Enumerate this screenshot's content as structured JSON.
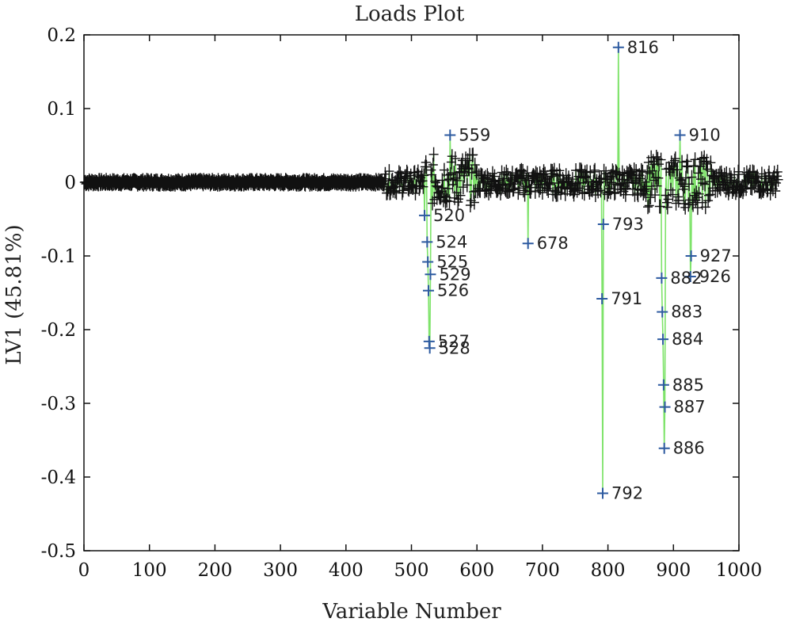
{
  "chart_data": {
    "type": "line",
    "title": "Loads Plot",
    "xlabel": "Variable Number",
    "ylabel": "LV1 (45.81%)",
    "xlim": [
      0,
      1000
    ],
    "ylim": [
      -0.5,
      0.2
    ],
    "xticks": [
      0,
      100,
      200,
      300,
      400,
      500,
      600,
      700,
      800,
      900,
      1000
    ],
    "yticks": [
      0.2,
      0.1,
      0,
      -0.1,
      -0.2,
      -0.3,
      -0.4,
      -0.5
    ],
    "ytick_labels": [
      "0.2",
      "0.1",
      "0",
      "-0.1",
      "-0.2",
      "-0.3",
      "-0.4",
      "-0.5"
    ],
    "grid": false,
    "colors": {
      "line": "#7ee36a",
      "marker": "#2d5aa0",
      "baseline": "#3f6fe0",
      "band": "#111111"
    },
    "labeled_points": [
      {
        "label": "816",
        "x": 816,
        "y": 0.183
      },
      {
        "label": "559",
        "x": 559,
        "y": 0.064
      },
      {
        "label": "678",
        "x": 678,
        "y": -0.083
      },
      {
        "label": "524",
        "x": 524,
        "y": -0.081
      },
      {
        "label": "525",
        "x": 525,
        "y": -0.108
      },
      {
        "label": "529",
        "x": 529,
        "y": -0.125
      },
      {
        "label": "526",
        "x": 526,
        "y": -0.147
      },
      {
        "label": "527",
        "x": 527,
        "y": -0.216
      },
      {
        "label": "528",
        "x": 528,
        "y": -0.225
      },
      {
        "label": "791",
        "x": 791,
        "y": -0.158
      },
      {
        "label": "793",
        "x": 793,
        "y": -0.057
      },
      {
        "label": "792",
        "x": 792,
        "y": -0.422
      },
      {
        "label": "910",
        "x": 910,
        "y": 0.064
      },
      {
        "label": "882",
        "x": 882,
        "y": -0.13
      },
      {
        "label": "883",
        "x": 883,
        "y": -0.176
      },
      {
        "label": "884",
        "x": 884,
        "y": -0.213
      },
      {
        "label": "885",
        "x": 885,
        "y": -0.275
      },
      {
        "label": "887",
        "x": 887,
        "y": -0.305
      },
      {
        "label": "886",
        "x": 886,
        "y": -0.361
      },
      {
        "label": "927",
        "x": 927,
        "y": -0.1
      },
      {
        "label": "926",
        "x": 926,
        "y": -0.128
      },
      {
        "label": "520",
        "x": 520,
        "y": -0.045
      }
    ]
  }
}
